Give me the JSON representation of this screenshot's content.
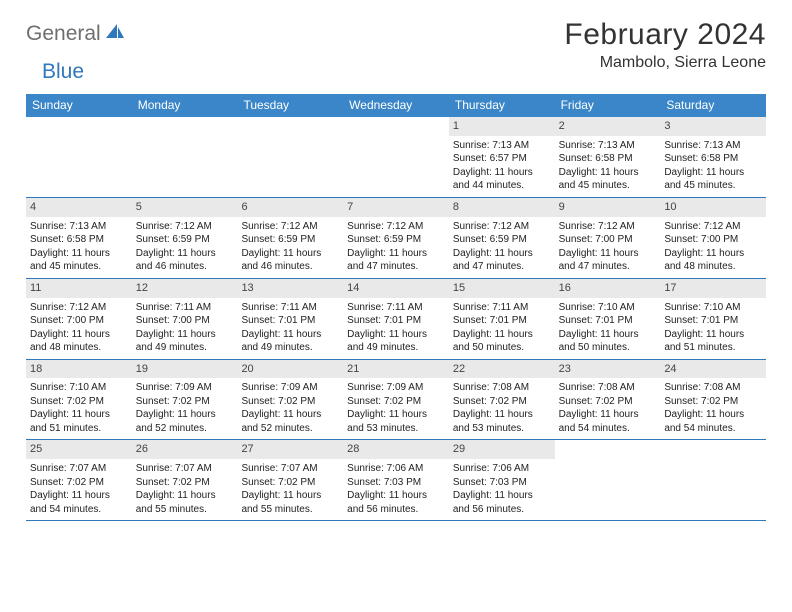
{
  "brand": {
    "part1": "General",
    "part2": "Blue"
  },
  "title": "February 2024",
  "location": "Mambolo, Sierra Leone",
  "weekdays": [
    "Sunday",
    "Monday",
    "Tuesday",
    "Wednesday",
    "Thursday",
    "Friday",
    "Saturday"
  ],
  "colors": {
    "header_bg": "#3a86c8",
    "rule": "#2f78bd",
    "daybar": "#e9e9e9",
    "logo_gray": "#6f6f6f",
    "logo_blue": "#2f78bd"
  },
  "weeks": [
    [
      {
        "empty": true
      },
      {
        "empty": true
      },
      {
        "empty": true
      },
      {
        "empty": true
      },
      {
        "num": "1",
        "sunrise": "Sunrise: 7:13 AM",
        "sunset": "Sunset: 6:57 PM",
        "day1": "Daylight: 11 hours",
        "day2": "and 44 minutes."
      },
      {
        "num": "2",
        "sunrise": "Sunrise: 7:13 AM",
        "sunset": "Sunset: 6:58 PM",
        "day1": "Daylight: 11 hours",
        "day2": "and 45 minutes."
      },
      {
        "num": "3",
        "sunrise": "Sunrise: 7:13 AM",
        "sunset": "Sunset: 6:58 PM",
        "day1": "Daylight: 11 hours",
        "day2": "and 45 minutes."
      }
    ],
    [
      {
        "num": "4",
        "sunrise": "Sunrise: 7:13 AM",
        "sunset": "Sunset: 6:58 PM",
        "day1": "Daylight: 11 hours",
        "day2": "and 45 minutes."
      },
      {
        "num": "5",
        "sunrise": "Sunrise: 7:12 AM",
        "sunset": "Sunset: 6:59 PM",
        "day1": "Daylight: 11 hours",
        "day2": "and 46 minutes."
      },
      {
        "num": "6",
        "sunrise": "Sunrise: 7:12 AM",
        "sunset": "Sunset: 6:59 PM",
        "day1": "Daylight: 11 hours",
        "day2": "and 46 minutes."
      },
      {
        "num": "7",
        "sunrise": "Sunrise: 7:12 AM",
        "sunset": "Sunset: 6:59 PM",
        "day1": "Daylight: 11 hours",
        "day2": "and 47 minutes."
      },
      {
        "num": "8",
        "sunrise": "Sunrise: 7:12 AM",
        "sunset": "Sunset: 6:59 PM",
        "day1": "Daylight: 11 hours",
        "day2": "and 47 minutes."
      },
      {
        "num": "9",
        "sunrise": "Sunrise: 7:12 AM",
        "sunset": "Sunset: 7:00 PM",
        "day1": "Daylight: 11 hours",
        "day2": "and 47 minutes."
      },
      {
        "num": "10",
        "sunrise": "Sunrise: 7:12 AM",
        "sunset": "Sunset: 7:00 PM",
        "day1": "Daylight: 11 hours",
        "day2": "and 48 minutes."
      }
    ],
    [
      {
        "num": "11",
        "sunrise": "Sunrise: 7:12 AM",
        "sunset": "Sunset: 7:00 PM",
        "day1": "Daylight: 11 hours",
        "day2": "and 48 minutes."
      },
      {
        "num": "12",
        "sunrise": "Sunrise: 7:11 AM",
        "sunset": "Sunset: 7:00 PM",
        "day1": "Daylight: 11 hours",
        "day2": "and 49 minutes."
      },
      {
        "num": "13",
        "sunrise": "Sunrise: 7:11 AM",
        "sunset": "Sunset: 7:01 PM",
        "day1": "Daylight: 11 hours",
        "day2": "and 49 minutes."
      },
      {
        "num": "14",
        "sunrise": "Sunrise: 7:11 AM",
        "sunset": "Sunset: 7:01 PM",
        "day1": "Daylight: 11 hours",
        "day2": "and 49 minutes."
      },
      {
        "num": "15",
        "sunrise": "Sunrise: 7:11 AM",
        "sunset": "Sunset: 7:01 PM",
        "day1": "Daylight: 11 hours",
        "day2": "and 50 minutes."
      },
      {
        "num": "16",
        "sunrise": "Sunrise: 7:10 AM",
        "sunset": "Sunset: 7:01 PM",
        "day1": "Daylight: 11 hours",
        "day2": "and 50 minutes."
      },
      {
        "num": "17",
        "sunrise": "Sunrise: 7:10 AM",
        "sunset": "Sunset: 7:01 PM",
        "day1": "Daylight: 11 hours",
        "day2": "and 51 minutes."
      }
    ],
    [
      {
        "num": "18",
        "sunrise": "Sunrise: 7:10 AM",
        "sunset": "Sunset: 7:02 PM",
        "day1": "Daylight: 11 hours",
        "day2": "and 51 minutes."
      },
      {
        "num": "19",
        "sunrise": "Sunrise: 7:09 AM",
        "sunset": "Sunset: 7:02 PM",
        "day1": "Daylight: 11 hours",
        "day2": "and 52 minutes."
      },
      {
        "num": "20",
        "sunrise": "Sunrise: 7:09 AM",
        "sunset": "Sunset: 7:02 PM",
        "day1": "Daylight: 11 hours",
        "day2": "and 52 minutes."
      },
      {
        "num": "21",
        "sunrise": "Sunrise: 7:09 AM",
        "sunset": "Sunset: 7:02 PM",
        "day1": "Daylight: 11 hours",
        "day2": "and 53 minutes."
      },
      {
        "num": "22",
        "sunrise": "Sunrise: 7:08 AM",
        "sunset": "Sunset: 7:02 PM",
        "day1": "Daylight: 11 hours",
        "day2": "and 53 minutes."
      },
      {
        "num": "23",
        "sunrise": "Sunrise: 7:08 AM",
        "sunset": "Sunset: 7:02 PM",
        "day1": "Daylight: 11 hours",
        "day2": "and 54 minutes."
      },
      {
        "num": "24",
        "sunrise": "Sunrise: 7:08 AM",
        "sunset": "Sunset: 7:02 PM",
        "day1": "Daylight: 11 hours",
        "day2": "and 54 minutes."
      }
    ],
    [
      {
        "num": "25",
        "sunrise": "Sunrise: 7:07 AM",
        "sunset": "Sunset: 7:02 PM",
        "day1": "Daylight: 11 hours",
        "day2": "and 54 minutes."
      },
      {
        "num": "26",
        "sunrise": "Sunrise: 7:07 AM",
        "sunset": "Sunset: 7:02 PM",
        "day1": "Daylight: 11 hours",
        "day2": "and 55 minutes."
      },
      {
        "num": "27",
        "sunrise": "Sunrise: 7:07 AM",
        "sunset": "Sunset: 7:02 PM",
        "day1": "Daylight: 11 hours",
        "day2": "and 55 minutes."
      },
      {
        "num": "28",
        "sunrise": "Sunrise: 7:06 AM",
        "sunset": "Sunset: 7:03 PM",
        "day1": "Daylight: 11 hours",
        "day2": "and 56 minutes."
      },
      {
        "num": "29",
        "sunrise": "Sunrise: 7:06 AM",
        "sunset": "Sunset: 7:03 PM",
        "day1": "Daylight: 11 hours",
        "day2": "and 56 minutes."
      },
      {
        "empty": true
      },
      {
        "empty": true
      }
    ]
  ]
}
